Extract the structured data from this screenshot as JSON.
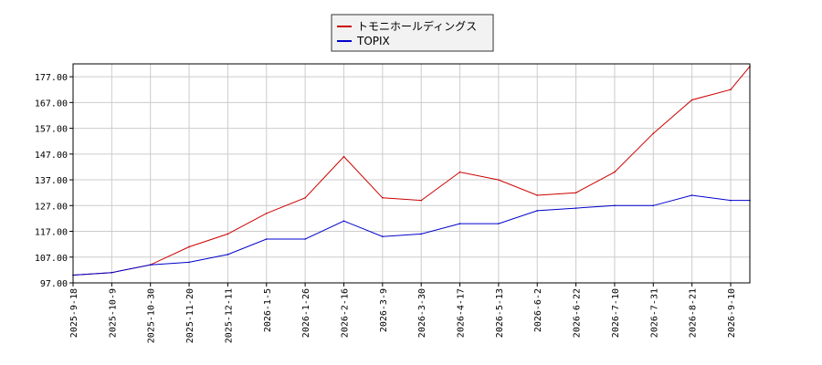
{
  "chart_data": {
    "type": "line",
    "title": "",
    "xlabel": "",
    "ylabel": "",
    "ylim": [
      97.0,
      182.0
    ],
    "yticks": [
      "97.00",
      "107.00",
      "117.00",
      "127.00",
      "137.00",
      "147.00",
      "157.00",
      "167.00",
      "177.00"
    ],
    "xticks": [
      "2025-9-18",
      "2025-10-9",
      "2025-10-30",
      "2025-11-20",
      "2025-12-11",
      "2026-1-5",
      "2026-1-26",
      "2026-2-16",
      "2026-3-9",
      "2026-3-30",
      "2026-4-17",
      "2026-5-13",
      "2026-6-2",
      "2026-6-22",
      "2026-7-10",
      "2026-7-31",
      "2026-8-21",
      "2026-9-10"
    ],
    "x": [
      "2025-9-18",
      "2025-10-9",
      "2025-10-30",
      "2025-11-20",
      "2025-12-11",
      "2026-1-5",
      "2026-1-26",
      "2026-2-16",
      "2026-3-9",
      "2026-3-30",
      "2026-4-17",
      "2026-5-13",
      "2026-6-2",
      "2026-6-22",
      "2026-7-10",
      "2026-7-31",
      "2026-8-21",
      "2026-9-10",
      "2026-9-15"
    ],
    "grid": true,
    "legend_position": "top-center",
    "series": [
      {
        "name": "トモニホールディングス",
        "color": "#cc0000",
        "values": [
          100,
          101,
          104,
          111,
          116,
          124,
          130,
          146,
          130,
          129,
          140,
          137,
          131,
          132,
          140,
          155,
          168,
          172,
          181
        ]
      },
      {
        "name": "TOPIX",
        "color": "#0000cc",
        "values": [
          100,
          101,
          104,
          105,
          108,
          114,
          114,
          121,
          115,
          116,
          120,
          120,
          125,
          126,
          127,
          127,
          131,
          129,
          129
        ]
      }
    ]
  }
}
